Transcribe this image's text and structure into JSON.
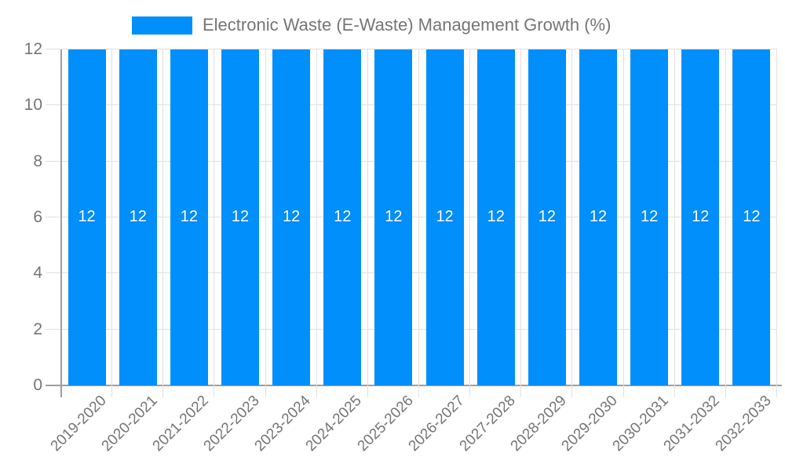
{
  "chart_data": {
    "type": "bar",
    "title": "Electronic Waste (E-Waste) Management Growth (%)",
    "categories": [
      "2019-2020",
      "2020-2021",
      "2021-2022",
      "2022-2023",
      "2023-2024",
      "2024-2025",
      "2025-2026",
      "2026-2027",
      "2027-2028",
      "2028-2029",
      "2029-2030",
      "2030-2031",
      "2031-2032",
      "2032-2033"
    ],
    "values": [
      12,
      12,
      12,
      12,
      12,
      12,
      12,
      12,
      12,
      12,
      12,
      12,
      12,
      12
    ],
    "bar_label_values": [
      "12",
      "12",
      "12",
      "12",
      "12",
      "12",
      "12",
      "12",
      "12",
      "12",
      "12",
      "12",
      "12",
      "12"
    ],
    "xlabel": "",
    "ylabel": "",
    "ylim": [
      0,
      12
    ],
    "yticks": [
      0,
      2,
      4,
      6,
      8,
      10,
      12
    ],
    "grid": true,
    "legend_position": "top",
    "colors": {
      "bar": "#008ffb",
      "axis_text": "#757575",
      "grid_line": "#e0e0e0",
      "axis_line": "#9e9e9e",
      "data_label": "#ffffff",
      "background": "#ffffff"
    }
  }
}
